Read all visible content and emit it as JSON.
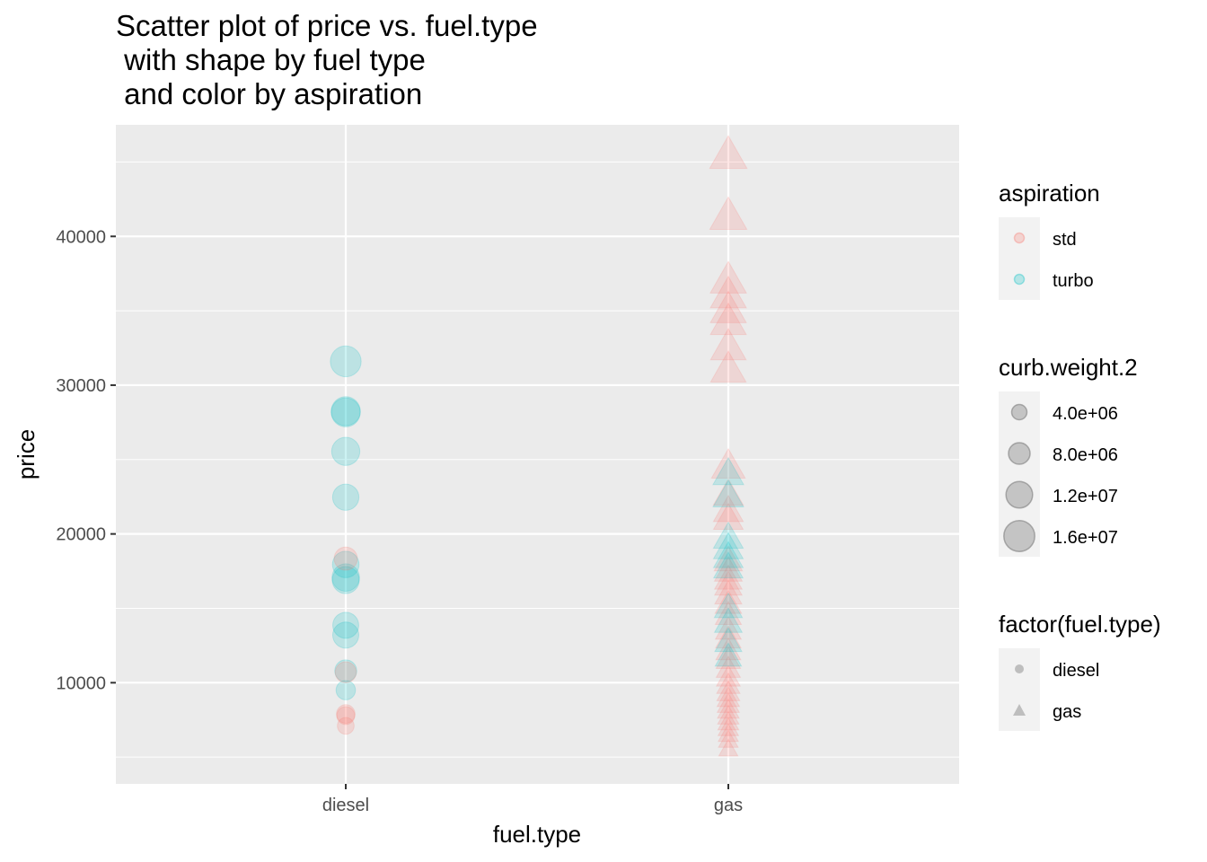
{
  "chart_data": {
    "type": "scatter",
    "title": "Scatter plot of price vs. fuel.type\n with shape by fuel type\n and color by aspiration",
    "xlabel": "fuel.type",
    "ylabel": "price",
    "categories": [
      "diesel",
      "gas"
    ],
    "ylim": [
      3200,
      47500
    ],
    "yticks": [
      10000,
      20000,
      30000,
      40000
    ],
    "grid": true,
    "legend_position": "right",
    "colors": {
      "std": "#F8766D",
      "turbo": "#00BFC4",
      "panel": "#EBEBEB",
      "grid": "#FFFFFF",
      "neutral": "#7F7F7F"
    },
    "legends": {
      "aspiration": {
        "title": "aspiration",
        "items": [
          "std",
          "turbo"
        ]
      },
      "size": {
        "title": "curb.weight.2",
        "items": [
          "4.0e+06",
          "8.0e+06",
          "1.2e+07",
          "1.6e+07"
        ],
        "values": [
          4000000,
          8000000,
          12000000,
          16000000
        ]
      },
      "shape": {
        "title": "factor(fuel.type)",
        "items": [
          "diesel",
          "gas"
        ],
        "shapes": [
          "circle",
          "triangle"
        ]
      }
    },
    "series": [
      {
        "fuel": "diesel",
        "aspiration": "turbo",
        "points": [
          {
            "price": 31600,
            "w": 15900000
          },
          {
            "price": 28250,
            "w": 14200000
          },
          {
            "price": 28170,
            "w": 14100000
          },
          {
            "price": 25550,
            "w": 13300000
          },
          {
            "price": 22470,
            "w": 11600000
          },
          {
            "price": 17950,
            "w": 11800000
          },
          {
            "price": 17070,
            "w": 12600000
          },
          {
            "price": 16900,
            "w": 12300000
          },
          {
            "price": 13860,
            "w": 11300000
          },
          {
            "price": 13200,
            "w": 11400000
          },
          {
            "price": 10800,
            "w": 8100000
          },
          {
            "price": 9500,
            "w": 6300000
          }
        ]
      },
      {
        "fuel": "diesel",
        "aspiration": "std",
        "points": [
          {
            "price": 18340,
            "w": 9000000
          },
          {
            "price": 7900,
            "w": 5800000
          },
          {
            "price": 7790,
            "w": 5400000
          },
          {
            "price": 7100,
            "w": 4700000
          },
          {
            "price": 10700,
            "w": 7400000
          }
        ]
      },
      {
        "fuel": "gas",
        "aspiration": "std",
        "points": [
          {
            "price": 45400,
            "w": 16300000
          },
          {
            "price": 41300,
            "w": 16000000
          },
          {
            "price": 37000,
            "w": 15200000
          },
          {
            "price": 36000,
            "w": 15100000
          },
          {
            "price": 35000,
            "w": 15000000
          },
          {
            "price": 34200,
            "w": 15000000
          },
          {
            "price": 32500,
            "w": 14800000
          },
          {
            "price": 31000,
            "w": 14600000
          },
          {
            "price": 24500,
            "w": 13200000
          },
          {
            "price": 22600,
            "w": 10600000
          },
          {
            "price": 21500,
            "w": 10400000
          },
          {
            "price": 20970,
            "w": 10200000
          },
          {
            "price": 18150,
            "w": 9300000
          },
          {
            "price": 17450,
            "w": 9000000
          },
          {
            "price": 16900,
            "w": 8800000
          },
          {
            "price": 16500,
            "w": 8700000
          },
          {
            "price": 15900,
            "w": 8500000
          },
          {
            "price": 15250,
            "w": 8200000
          },
          {
            "price": 14500,
            "w": 8000000
          },
          {
            "price": 13500,
            "w": 7800000
          },
          {
            "price": 12900,
            "w": 7500000
          },
          {
            "price": 12100,
            "w": 7200000
          },
          {
            "price": 11500,
            "w": 7000000
          },
          {
            "price": 10900,
            "w": 6800000
          },
          {
            "price": 10300,
            "w": 6600000
          },
          {
            "price": 9800,
            "w": 6300000
          },
          {
            "price": 9300,
            "w": 6100000
          },
          {
            "price": 8900,
            "w": 5900000
          },
          {
            "price": 8500,
            "w": 5700000
          },
          {
            "price": 8100,
            "w": 5500000
          },
          {
            "price": 7700,
            "w": 5300000
          },
          {
            "price": 7300,
            "w": 5100000
          },
          {
            "price": 6900,
            "w": 4900000
          },
          {
            "price": 6500,
            "w": 4700000
          },
          {
            "price": 6100,
            "w": 4500000
          },
          {
            "price": 5500,
            "w": 4300000
          }
        ]
      },
      {
        "fuel": "gas",
        "aspiration": "turbo",
        "points": [
          {
            "price": 24000,
            "w": 11000000
          },
          {
            "price": 22500,
            "w": 10800000
          },
          {
            "price": 19700,
            "w": 10400000
          },
          {
            "price": 19000,
            "w": 10300000
          },
          {
            "price": 18400,
            "w": 10200000
          },
          {
            "price": 17700,
            "w": 10000000
          },
          {
            "price": 15000,
            "w": 9200000
          },
          {
            "price": 14000,
            "w": 8900000
          },
          {
            "price": 12700,
            "w": 8500000
          },
          {
            "price": 11700,
            "w": 8100000
          }
        ]
      }
    ]
  }
}
